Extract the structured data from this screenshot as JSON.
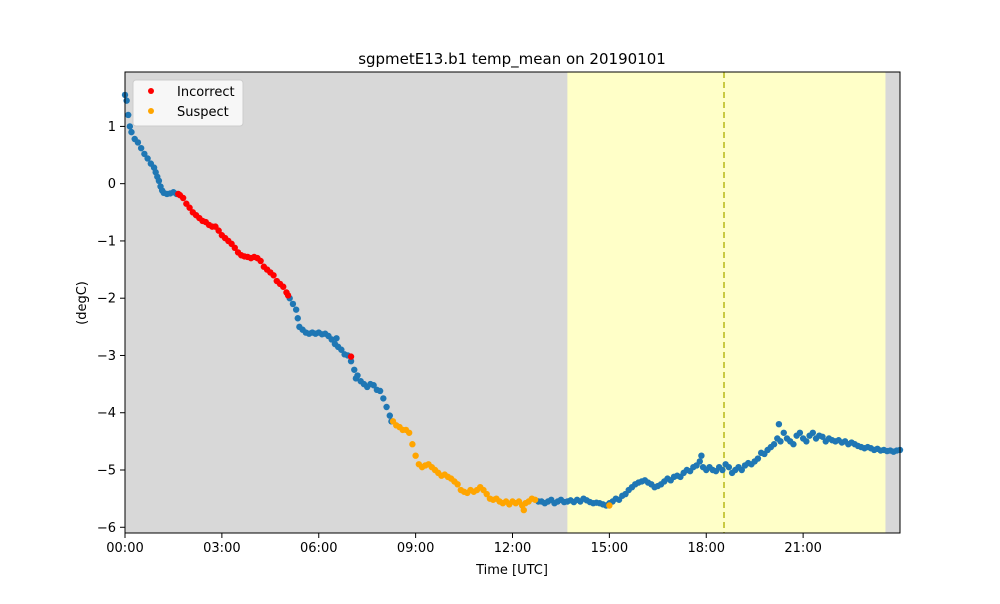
{
  "chart_data": {
    "type": "scatter",
    "title": "sgpmetE13.b1 temp_mean on 20190101",
    "xlabel": "Time [UTC]",
    "ylabel": "(degC)",
    "x_unit": "hours UTC",
    "xlim": [
      0,
      24
    ],
    "ylim": [
      -6.1,
      1.95
    ],
    "xticks": [
      {
        "value": 0,
        "label": "00:00"
      },
      {
        "value": 3,
        "label": "03:00"
      },
      {
        "value": 6,
        "label": "06:00"
      },
      {
        "value": 9,
        "label": "09:00"
      },
      {
        "value": 12,
        "label": "12:00"
      },
      {
        "value": 15,
        "label": "15:00"
      },
      {
        "value": 18,
        "label": "18:00"
      },
      {
        "value": 21,
        "label": "21:00"
      }
    ],
    "yticks": [
      {
        "value": 1,
        "label": "1"
      },
      {
        "value": 0,
        "label": "0"
      },
      {
        "value": -1,
        "label": "−1"
      },
      {
        "value": -2,
        "label": "−2"
      },
      {
        "value": -3,
        "label": "−3"
      },
      {
        "value": -4,
        "label": "−4"
      },
      {
        "value": -5,
        "label": "−5"
      },
      {
        "value": -6,
        "label": "−6"
      }
    ],
    "grid": false,
    "background_color": "#d8d8d8",
    "shaded_regions": [
      {
        "start": 13.7,
        "end": 23.55,
        "color": "#ffffc8"
      }
    ],
    "vlines": [
      {
        "x": 18.55,
        "color": "#bcbd22",
        "style": "dashed"
      }
    ],
    "legend_position": "upper-left",
    "legend": [
      {
        "label": "Incorrect",
        "color": "#ff0000"
      },
      {
        "label": "Suspect",
        "color": "#ffa500"
      }
    ],
    "series": [
      {
        "name": "",
        "color": "#1f77b4",
        "points": [
          [
            0.0,
            1.55
          ],
          [
            0.05,
            1.45
          ],
          [
            0.1,
            1.2
          ],
          [
            0.15,
            1.0
          ],
          [
            0.2,
            0.9
          ],
          [
            0.3,
            0.78
          ],
          [
            0.4,
            0.72
          ],
          [
            0.5,
            0.62
          ],
          [
            0.6,
            0.52
          ],
          [
            0.7,
            0.44
          ],
          [
            0.8,
            0.35
          ],
          [
            0.9,
            0.28
          ],
          [
            0.95,
            0.2
          ],
          [
            1.0,
            0.12
          ],
          [
            1.05,
            0.05
          ],
          [
            1.1,
            -0.05
          ],
          [
            1.15,
            -0.12
          ],
          [
            1.2,
            -0.16
          ],
          [
            1.3,
            -0.18
          ],
          [
            1.4,
            -0.17
          ],
          [
            1.5,
            -0.15
          ],
          [
            1.6,
            -0.18
          ],
          [
            5.1,
            -2.0
          ],
          [
            5.2,
            -2.1
          ],
          [
            5.3,
            -2.2
          ],
          [
            5.35,
            -2.35
          ],
          [
            5.4,
            -2.5
          ],
          [
            5.5,
            -2.55
          ],
          [
            5.6,
            -2.6
          ],
          [
            5.7,
            -2.62
          ],
          [
            5.8,
            -2.6
          ],
          [
            5.9,
            -2.62
          ],
          [
            6.0,
            -2.6
          ],
          [
            6.1,
            -2.63
          ],
          [
            6.2,
            -2.62
          ],
          [
            6.3,
            -2.66
          ],
          [
            6.4,
            -2.72
          ],
          [
            6.5,
            -2.8
          ],
          [
            6.55,
            -2.7
          ],
          [
            6.6,
            -2.85
          ],
          [
            6.7,
            -2.9
          ],
          [
            6.8,
            -2.98
          ],
          [
            6.9,
            -3.0
          ],
          [
            7.0,
            -3.1
          ],
          [
            7.1,
            -3.25
          ],
          [
            7.15,
            -3.4
          ],
          [
            7.2,
            -3.35
          ],
          [
            7.3,
            -3.45
          ],
          [
            7.4,
            -3.5
          ],
          [
            7.5,
            -3.55
          ],
          [
            7.6,
            -3.5
          ],
          [
            7.7,
            -3.52
          ],
          [
            7.8,
            -3.6
          ],
          [
            7.9,
            -3.62
          ],
          [
            8.0,
            -3.75
          ],
          [
            8.1,
            -3.9
          ],
          [
            8.2,
            -4.05
          ],
          [
            8.25,
            -4.15
          ],
          [
            12.8,
            -5.55
          ],
          [
            12.9,
            -5.55
          ],
          [
            13.0,
            -5.58
          ],
          [
            13.1,
            -5.55
          ],
          [
            13.2,
            -5.52
          ],
          [
            13.3,
            -5.58
          ],
          [
            13.4,
            -5.55
          ],
          [
            13.5,
            -5.52
          ],
          [
            13.6,
            -5.56
          ],
          [
            13.7,
            -5.55
          ],
          [
            13.8,
            -5.53
          ],
          [
            13.9,
            -5.56
          ],
          [
            14.0,
            -5.52
          ],
          [
            14.1,
            -5.55
          ],
          [
            14.2,
            -5.5
          ],
          [
            14.3,
            -5.53
          ],
          [
            14.4,
            -5.56
          ],
          [
            14.5,
            -5.58
          ],
          [
            14.6,
            -5.57
          ],
          [
            14.7,
            -5.58
          ],
          [
            14.8,
            -5.6
          ],
          [
            14.9,
            -5.62
          ],
          [
            15.0,
            -5.58
          ],
          [
            15.1,
            -5.55
          ],
          [
            15.2,
            -5.5
          ],
          [
            15.3,
            -5.52
          ],
          [
            15.4,
            -5.45
          ],
          [
            15.5,
            -5.42
          ],
          [
            15.6,
            -5.35
          ],
          [
            15.7,
            -5.3
          ],
          [
            15.8,
            -5.25
          ],
          [
            15.9,
            -5.22
          ],
          [
            16.0,
            -5.2
          ],
          [
            16.1,
            -5.18
          ],
          [
            16.2,
            -5.22
          ],
          [
            16.3,
            -5.25
          ],
          [
            16.4,
            -5.3
          ],
          [
            16.5,
            -5.28
          ],
          [
            16.6,
            -5.25
          ],
          [
            16.7,
            -5.2
          ],
          [
            16.8,
            -5.15
          ],
          [
            16.9,
            -5.18
          ],
          [
            17.0,
            -5.12
          ],
          [
            17.1,
            -5.1
          ],
          [
            17.2,
            -5.12
          ],
          [
            17.3,
            -5.05
          ],
          [
            17.4,
            -5.0
          ],
          [
            17.5,
            -5.02
          ],
          [
            17.6,
            -4.95
          ],
          [
            17.7,
            -4.92
          ],
          [
            17.8,
            -4.85
          ],
          [
            17.85,
            -4.75
          ],
          [
            17.9,
            -4.95
          ],
          [
            18.0,
            -5.0
          ],
          [
            18.1,
            -4.95
          ],
          [
            18.2,
            -5.0
          ],
          [
            18.3,
            -5.02
          ],
          [
            18.4,
            -4.95
          ],
          [
            18.5,
            -5.0
          ],
          [
            18.6,
            -4.9
          ],
          [
            18.7,
            -4.95
          ],
          [
            18.8,
            -5.05
          ],
          [
            18.9,
            -5.0
          ],
          [
            19.0,
            -4.95
          ],
          [
            19.1,
            -5.0
          ],
          [
            19.2,
            -4.92
          ],
          [
            19.3,
            -4.88
          ],
          [
            19.4,
            -4.9
          ],
          [
            19.5,
            -4.85
          ],
          [
            19.6,
            -4.8
          ],
          [
            19.7,
            -4.7
          ],
          [
            19.8,
            -4.72
          ],
          [
            19.9,
            -4.65
          ],
          [
            20.0,
            -4.6
          ],
          [
            20.1,
            -4.55
          ],
          [
            20.2,
            -4.45
          ],
          [
            20.25,
            -4.2
          ],
          [
            20.3,
            -4.5
          ],
          [
            20.4,
            -4.35
          ],
          [
            20.5,
            -4.45
          ],
          [
            20.6,
            -4.5
          ],
          [
            20.7,
            -4.55
          ],
          [
            20.8,
            -4.4
          ],
          [
            20.9,
            -4.35
          ],
          [
            21.0,
            -4.45
          ],
          [
            21.1,
            -4.5
          ],
          [
            21.2,
            -4.4
          ],
          [
            21.3,
            -4.35
          ],
          [
            21.4,
            -4.45
          ],
          [
            21.5,
            -4.4
          ],
          [
            21.6,
            -4.42
          ],
          [
            21.7,
            -4.5
          ],
          [
            21.8,
            -4.45
          ],
          [
            21.9,
            -4.48
          ],
          [
            22.0,
            -4.5
          ],
          [
            22.1,
            -4.48
          ],
          [
            22.2,
            -4.52
          ],
          [
            22.3,
            -4.5
          ],
          [
            22.4,
            -4.55
          ],
          [
            22.5,
            -4.52
          ],
          [
            22.6,
            -4.55
          ],
          [
            22.7,
            -4.58
          ],
          [
            22.8,
            -4.6
          ],
          [
            22.9,
            -4.62
          ],
          [
            23.0,
            -4.6
          ],
          [
            23.1,
            -4.62
          ],
          [
            23.2,
            -4.65
          ],
          [
            23.3,
            -4.63
          ],
          [
            23.4,
            -4.66
          ],
          [
            23.5,
            -4.65
          ],
          [
            23.6,
            -4.67
          ],
          [
            23.7,
            -4.66
          ],
          [
            23.8,
            -4.68
          ],
          [
            23.9,
            -4.66
          ],
          [
            24.0,
            -4.65
          ]
        ]
      },
      {
        "name": "Incorrect",
        "color": "#ff0000",
        "points": [
          [
            1.65,
            -0.18
          ],
          [
            1.7,
            -0.2
          ],
          [
            1.8,
            -0.25
          ],
          [
            1.9,
            -0.35
          ],
          [
            2.0,
            -0.42
          ],
          [
            2.1,
            -0.5
          ],
          [
            2.2,
            -0.55
          ],
          [
            2.3,
            -0.6
          ],
          [
            2.4,
            -0.65
          ],
          [
            2.5,
            -0.67
          ],
          [
            2.6,
            -0.72
          ],
          [
            2.7,
            -0.75
          ],
          [
            2.8,
            -0.75
          ],
          [
            2.9,
            -0.82
          ],
          [
            3.0,
            -0.9
          ],
          [
            3.1,
            -0.95
          ],
          [
            3.2,
            -1.0
          ],
          [
            3.3,
            -1.05
          ],
          [
            3.4,
            -1.12
          ],
          [
            3.5,
            -1.2
          ],
          [
            3.6,
            -1.25
          ],
          [
            3.7,
            -1.27
          ],
          [
            3.8,
            -1.28
          ],
          [
            3.9,
            -1.3
          ],
          [
            4.0,
            -1.28
          ],
          [
            4.1,
            -1.3
          ],
          [
            4.2,
            -1.35
          ],
          [
            4.3,
            -1.45
          ],
          [
            4.4,
            -1.5
          ],
          [
            4.5,
            -1.55
          ],
          [
            4.6,
            -1.6
          ],
          [
            4.7,
            -1.7
          ],
          [
            4.8,
            -1.75
          ],
          [
            4.9,
            -1.8
          ],
          [
            5.0,
            -1.9
          ],
          [
            5.05,
            -1.95
          ],
          [
            7.0,
            -3.02
          ]
        ]
      },
      {
        "name": "Suspect",
        "color": "#ffa500",
        "points": [
          [
            8.3,
            -4.15
          ],
          [
            8.4,
            -4.22
          ],
          [
            8.5,
            -4.25
          ],
          [
            8.6,
            -4.3
          ],
          [
            8.7,
            -4.3
          ],
          [
            8.8,
            -4.35
          ],
          [
            8.9,
            -4.55
          ],
          [
            9.0,
            -4.75
          ],
          [
            9.1,
            -4.9
          ],
          [
            9.2,
            -4.95
          ],
          [
            9.3,
            -4.92
          ],
          [
            9.4,
            -4.9
          ],
          [
            9.5,
            -4.95
          ],
          [
            9.6,
            -5.0
          ],
          [
            9.7,
            -5.05
          ],
          [
            9.8,
            -5.1
          ],
          [
            9.9,
            -5.08
          ],
          [
            10.0,
            -5.12
          ],
          [
            10.1,
            -5.15
          ],
          [
            10.2,
            -5.2
          ],
          [
            10.3,
            -5.25
          ],
          [
            10.4,
            -5.35
          ],
          [
            10.5,
            -5.38
          ],
          [
            10.6,
            -5.4
          ],
          [
            10.7,
            -5.35
          ],
          [
            10.8,
            -5.38
          ],
          [
            10.9,
            -5.35
          ],
          [
            11.0,
            -5.3
          ],
          [
            11.1,
            -5.35
          ],
          [
            11.2,
            -5.42
          ],
          [
            11.3,
            -5.5
          ],
          [
            11.4,
            -5.52
          ],
          [
            11.5,
            -5.5
          ],
          [
            11.6,
            -5.55
          ],
          [
            11.7,
            -5.58
          ],
          [
            11.8,
            -5.55
          ],
          [
            11.9,
            -5.6
          ],
          [
            12.0,
            -5.55
          ],
          [
            12.1,
            -5.58
          ],
          [
            12.2,
            -5.55
          ],
          [
            12.3,
            -5.62
          ],
          [
            12.35,
            -5.7
          ],
          [
            12.4,
            -5.58
          ],
          [
            12.5,
            -5.55
          ],
          [
            12.6,
            -5.5
          ],
          [
            12.7,
            -5.52
          ],
          [
            15.0,
            -5.62
          ]
        ]
      }
    ]
  }
}
